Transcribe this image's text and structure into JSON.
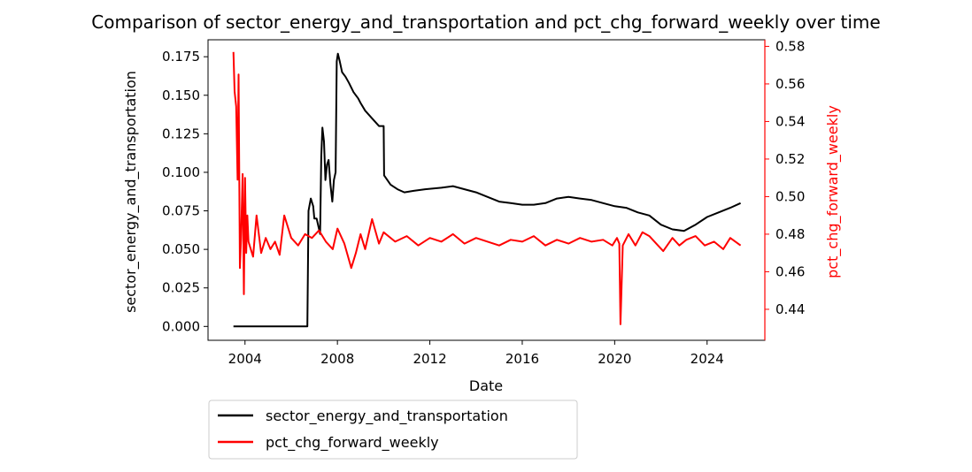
{
  "chart_data": {
    "type": "line",
    "title": "Comparison of sector_energy_and_transportation and pct_chg_forward_weekly over time",
    "xlabel": "Date",
    "xlim": [
      2002.4,
      2026.5
    ],
    "xticks": [
      2004,
      2008,
      2012,
      2016,
      2020,
      2024
    ],
    "xtick_labels": [
      "2004",
      "2008",
      "2012",
      "2016",
      "2020",
      "2024"
    ],
    "y_left": {
      "label": "sector_energy_and_transportation",
      "color": "#000000",
      "lim": [
        -0.009,
        0.186
      ],
      "ticks": [
        0.0,
        0.025,
        0.05,
        0.075,
        0.1,
        0.125,
        0.15,
        0.175
      ],
      "tick_labels": [
        "0.000",
        "0.025",
        "0.050",
        "0.075",
        "0.100",
        "0.125",
        "0.150",
        "0.175"
      ]
    },
    "y_right": {
      "label": "pct_chg_forward_weekly",
      "color": "#ff0000",
      "lim": [
        0.4235,
        0.5835
      ],
      "ticks": [
        0.44,
        0.46,
        0.48,
        0.5,
        0.52,
        0.54,
        0.56,
        0.58
      ],
      "tick_labels": [
        "0.44",
        "0.46",
        "0.48",
        "0.50",
        "0.52",
        "0.54",
        "0.56",
        "0.58"
      ]
    },
    "series": [
      {
        "name": "sector_energy_and_transportation",
        "axis": "left",
        "color": "#000000",
        "x": [
          2003.5,
          2006.5,
          2006.7,
          2006.75,
          2006.85,
          2006.95,
          2007.0,
          2007.1,
          2007.25,
          2007.3,
          2007.35,
          2007.42,
          2007.48,
          2007.55,
          2007.62,
          2007.7,
          2007.78,
          2007.85,
          2007.92,
          2007.97,
          2008.02,
          2008.1,
          2008.2,
          2008.35,
          2008.5,
          2008.7,
          2008.9,
          2009.0,
          2009.2,
          2009.5,
          2009.8,
          2010.0,
          2010.02,
          2010.3,
          2010.6,
          2010.9,
          2011.3,
          2011.8,
          2012.5,
          2013.0,
          2013.5,
          2014.0,
          2014.5,
          2015.0,
          2015.5,
          2016.0,
          2016.5,
          2017.0,
          2017.5,
          2018.0,
          2018.5,
          2019.0,
          2019.5,
          2020.0,
          2020.5,
          2021.0,
          2021.5,
          2022.0,
          2022.5,
          2023.0,
          2023.5,
          2024.0,
          2024.5,
          2025.0,
          2025.45
        ],
        "y": [
          0.0,
          0.0,
          0.0,
          0.075,
          0.083,
          0.078,
          0.07,
          0.07,
          0.06,
          0.11,
          0.129,
          0.12,
          0.095,
          0.105,
          0.108,
          0.092,
          0.081,
          0.095,
          0.1,
          0.172,
          0.177,
          0.172,
          0.165,
          0.162,
          0.158,
          0.152,
          0.148,
          0.145,
          0.14,
          0.135,
          0.13,
          0.13,
          0.098,
          0.092,
          0.089,
          0.087,
          0.088,
          0.089,
          0.09,
          0.091,
          0.089,
          0.087,
          0.084,
          0.081,
          0.08,
          0.079,
          0.079,
          0.08,
          0.083,
          0.084,
          0.083,
          0.082,
          0.08,
          0.078,
          0.077,
          0.074,
          0.072,
          0.066,
          0.063,
          0.062,
          0.066,
          0.071,
          0.074,
          0.077,
          0.08
        ]
      },
      {
        "name": "pct_chg_forward_weekly",
        "axis": "right",
        "color": "#ff0000",
        "x": [
          2003.5,
          2003.55,
          2003.62,
          2003.68,
          2003.72,
          2003.78,
          2003.83,
          2003.9,
          2003.95,
          2004.0,
          2004.05,
          2004.1,
          2004.15,
          2004.25,
          2004.35,
          2004.5,
          2004.7,
          2004.9,
          2005.1,
          2005.3,
          2005.5,
          2005.7,
          2006.0,
          2006.3,
          2006.6,
          2006.9,
          2007.2,
          2007.5,
          2007.8,
          2008.0,
          2008.3,
          2008.6,
          2008.8,
          2009.0,
          2009.2,
          2009.5,
          2009.8,
          2010.0,
          2010.5,
          2011.0,
          2011.5,
          2012.0,
          2012.5,
          2013.0,
          2013.5,
          2014.0,
          2014.5,
          2015.0,
          2015.5,
          2016.0,
          2016.5,
          2017.0,
          2017.5,
          2018.0,
          2018.5,
          2019.0,
          2019.5,
          2019.9,
          2020.1,
          2020.2,
          2020.25,
          2020.35,
          2020.6,
          2020.9,
          2021.2,
          2021.5,
          2021.8,
          2022.1,
          2022.5,
          2022.8,
          2023.1,
          2023.5,
          2023.9,
          2024.3,
          2024.7,
          2025.0,
          2025.45
        ],
        "y": [
          0.577,
          0.556,
          0.548,
          0.509,
          0.565,
          0.462,
          0.478,
          0.512,
          0.448,
          0.51,
          0.47,
          0.49,
          0.476,
          0.472,
          0.468,
          0.49,
          0.47,
          0.478,
          0.472,
          0.476,
          0.469,
          0.49,
          0.478,
          0.474,
          0.48,
          0.478,
          0.482,
          0.476,
          0.472,
          0.483,
          0.475,
          0.462,
          0.47,
          0.48,
          0.472,
          0.488,
          0.475,
          0.481,
          0.476,
          0.479,
          0.474,
          0.478,
          0.476,
          0.48,
          0.475,
          0.478,
          0.476,
          0.474,
          0.477,
          0.476,
          0.479,
          0.474,
          0.477,
          0.475,
          0.478,
          0.476,
          0.477,
          0.474,
          0.478,
          0.475,
          0.432,
          0.474,
          0.48,
          0.474,
          0.481,
          0.479,
          0.475,
          0.471,
          0.478,
          0.474,
          0.477,
          0.479,
          0.474,
          0.476,
          0.472,
          0.478,
          0.474
        ]
      }
    ],
    "legend": {
      "placement": "below-left",
      "entries": [
        "sector_energy_and_transportation",
        "pct_chg_forward_weekly"
      ]
    }
  }
}
